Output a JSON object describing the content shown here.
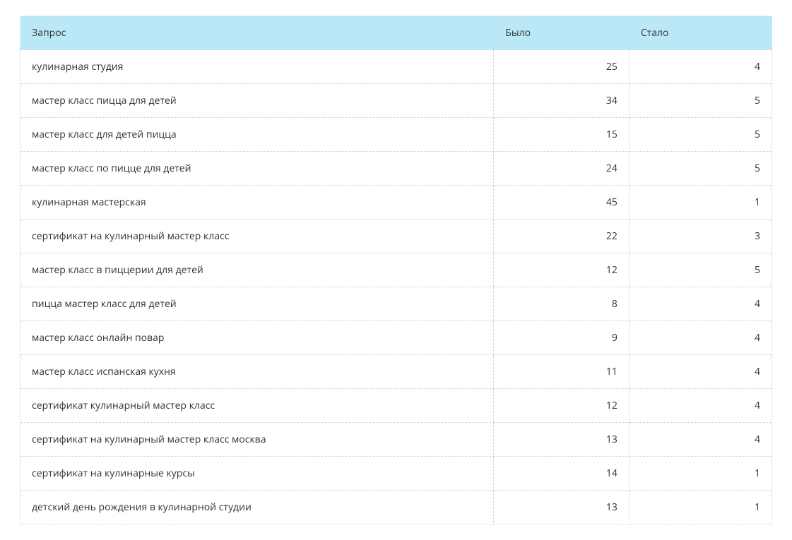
{
  "table": {
    "type": "table",
    "header_background": "#bbe8f6",
    "border_color": "#cccccc",
    "text_color": "#333333",
    "font_size_pt": 11,
    "columns": [
      {
        "key": "query",
        "label": "Запрос",
        "align": "left",
        "width_pct": 63
      },
      {
        "key": "before",
        "label": "Было",
        "align": "right",
        "width_pct": 18
      },
      {
        "key": "after",
        "label": "Стало",
        "align": "right",
        "width_pct": 19
      }
    ],
    "rows": [
      {
        "query": "кулинарная студия",
        "before": 25,
        "after": 4
      },
      {
        "query": "мастер класс пицца для детей",
        "before": 34,
        "after": 5
      },
      {
        "query": "мастер класс для детей пицца",
        "before": 15,
        "after": 5
      },
      {
        "query": "мастер класс по пицце для детей",
        "before": 24,
        "after": 5
      },
      {
        "query": "кулинарная мастерская",
        "before": 45,
        "after": 1
      },
      {
        "query": "сертификат на кулинарный мастер класс",
        "before": 22,
        "after": 3
      },
      {
        "query": "мастер класс в пиццерии для детей",
        "before": 12,
        "after": 5
      },
      {
        "query": "пицца мастер класс для детей",
        "before": 8,
        "after": 4
      },
      {
        "query": "мастер класс онлайн повар",
        "before": 9,
        "after": 4
      },
      {
        "query": "мастер класс испанская кухня",
        "before": 11,
        "after": 4
      },
      {
        "query": "сертификат кулинарный мастер класс",
        "before": 12,
        "after": 4
      },
      {
        "query": "сертификат на кулинарный мастер класс москва",
        "before": 13,
        "after": 4
      },
      {
        "query": "сертификат на кулинарные курсы",
        "before": 14,
        "after": 1
      },
      {
        "query": "детский день рождения в кулинарной студии",
        "before": 13,
        "after": 1
      }
    ]
  }
}
